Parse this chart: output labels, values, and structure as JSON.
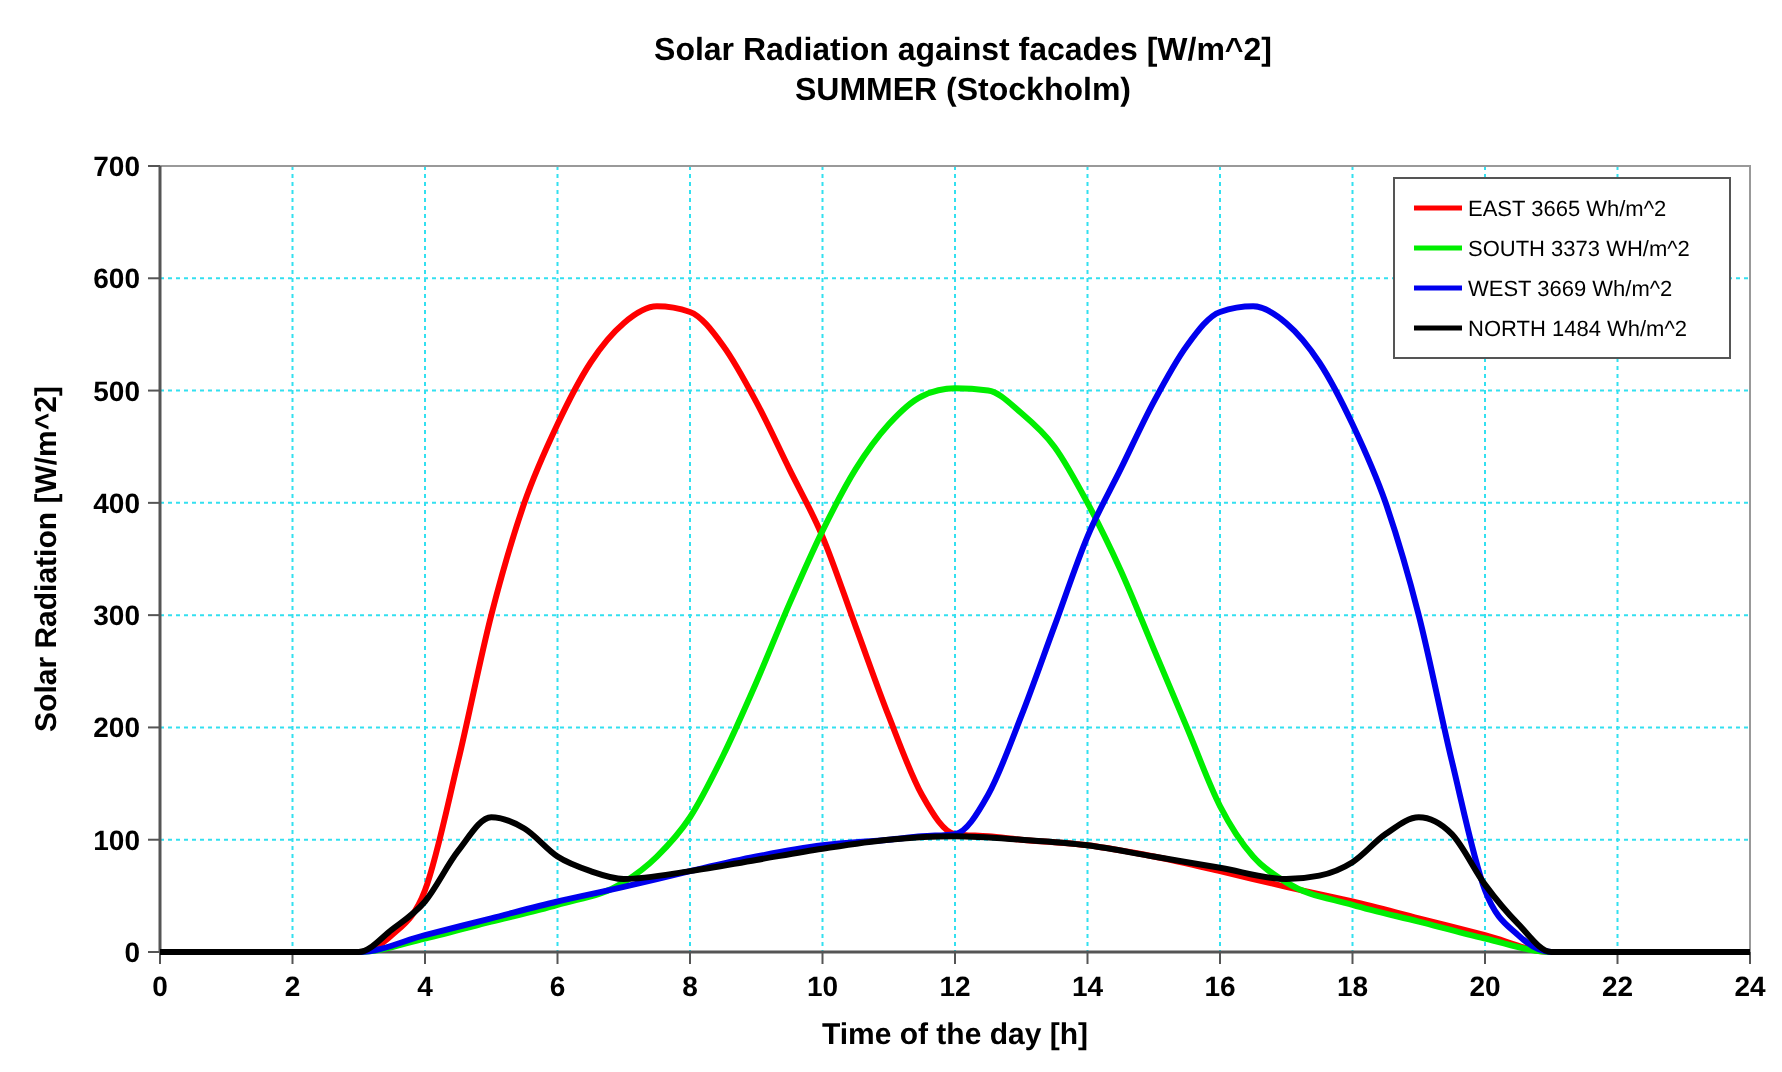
{
  "chart_data": {
    "type": "line",
    "title": "Solar Radiation against facades [W/m^2]",
    "subtitle": "SUMMER (Stockholm)",
    "xlabel": "Time of the day [h]",
    "ylabel": "Solar Radiation [W/m^2]",
    "xlim": [
      0,
      24
    ],
    "ylim": [
      0,
      700
    ],
    "xticks": [
      0,
      2,
      4,
      6,
      8,
      10,
      12,
      14,
      16,
      18,
      20,
      22,
      24
    ],
    "yticks": [
      0,
      100,
      200,
      300,
      400,
      500,
      600,
      700
    ],
    "grid": true,
    "legend": "top right",
    "marker": "none",
    "line_style": "solid",
    "series": [
      {
        "name": "EAST 3665 Wh/m^2",
        "color": "#ff0000",
        "x": [
          0,
          3,
          3.5,
          4,
          4.5,
          5,
          5.5,
          6,
          6.5,
          7,
          7.5,
          8,
          8.5,
          9,
          9.5,
          10,
          10.5,
          11,
          11.5,
          12,
          12.5,
          13,
          14,
          15,
          16,
          17,
          18,
          19,
          20,
          21,
          24
        ],
        "values": [
          0,
          0,
          15,
          55,
          170,
          300,
          400,
          470,
          525,
          560,
          575,
          570,
          540,
          490,
          430,
          370,
          290,
          210,
          140,
          105,
          103,
          100,
          95,
          85,
          72,
          58,
          45,
          30,
          15,
          0,
          0
        ]
      },
      {
        "name": "SOUTH 3373 WH/m^2",
        "color": "#00ee00",
        "x": [
          0,
          3,
          4,
          5,
          6,
          7,
          7.5,
          8,
          8.5,
          9,
          9.5,
          10,
          10.5,
          11,
          11.5,
          12,
          12.5,
          13,
          13.5,
          14,
          14.5,
          15,
          15.5,
          16,
          16.5,
          17,
          18,
          19,
          20,
          21,
          24
        ],
        "values": [
          0,
          0,
          12,
          27,
          42,
          62,
          85,
          120,
          175,
          240,
          310,
          375,
          430,
          470,
          495,
          502,
          500,
          480,
          450,
          400,
          340,
          270,
          200,
          130,
          85,
          62,
          42,
          27,
          12,
          0,
          0
        ]
      },
      {
        "name": "WEST 3669 Wh/m^2",
        "color": "#0000ee",
        "x": [
          0,
          3,
          4,
          5,
          6,
          7,
          8,
          9,
          10,
          11,
          11.5,
          12,
          12.5,
          13,
          13.5,
          14,
          14.5,
          15,
          15.5,
          16,
          16.5,
          17,
          17.5,
          18,
          18.5,
          19,
          19.5,
          20,
          20.5,
          21,
          24
        ],
        "values": [
          0,
          0,
          15,
          30,
          45,
          58,
          72,
          85,
          95,
          100,
          103,
          105,
          140,
          210,
          290,
          370,
          430,
          490,
          540,
          570,
          575,
          560,
          525,
          470,
          400,
          300,
          170,
          55,
          15,
          0,
          0
        ]
      },
      {
        "name": "NORTH 1484 Wh/m^2",
        "color": "#000000",
        "x": [
          0,
          3,
          3.5,
          4,
          4.5,
          5,
          5.5,
          6,
          6.5,
          7,
          8,
          9,
          10,
          11,
          12,
          13,
          14,
          15,
          16,
          17,
          17.5,
          18,
          18.5,
          19,
          19.5,
          20,
          20.5,
          21,
          24
        ],
        "values": [
          0,
          0,
          20,
          45,
          90,
          120,
          110,
          85,
          72,
          65,
          72,
          82,
          92,
          100,
          103,
          100,
          95,
          85,
          75,
          65,
          68,
          80,
          105,
          120,
          105,
          60,
          25,
          0,
          0
        ]
      }
    ]
  }
}
